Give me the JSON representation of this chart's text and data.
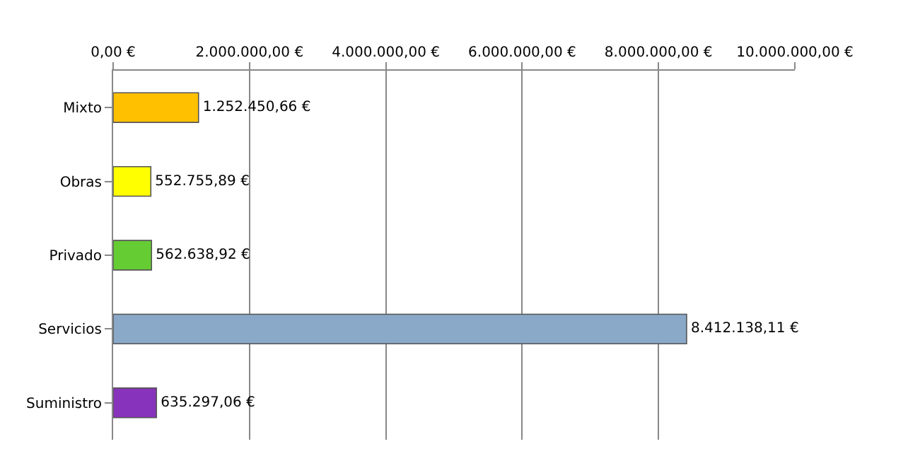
{
  "chart_data": {
    "type": "bar",
    "orientation": "horizontal",
    "categories": [
      "Mixto",
      "Obras",
      "Privado",
      "Servicios",
      "Suministro"
    ],
    "values": [
      1252450.66,
      552755.89,
      562638.92,
      8412138.11,
      635297.06
    ],
    "colors": [
      "#ffc000",
      "#ffff00",
      "#66cc33",
      "#8aa8c8",
      "#8833bb"
    ],
    "value_labels": [
      "1.252.450,66 €",
      "552.755,89 €",
      "562.638,92 €",
      "8.412.138,11 €",
      "635.297,06 €"
    ],
    "xlim": [
      0,
      10000000
    ],
    "xticks": [
      {
        "value": 0,
        "label": "0,00 €"
      },
      {
        "value": 2000000,
        "label": "2.000.000,00 €"
      },
      {
        "value": 4000000,
        "label": "4.000.000,00 €"
      },
      {
        "value": 6000000,
        "label": "6.000.000,00 €"
      },
      {
        "value": 8000000,
        "label": "8.000.000,00 €"
      },
      {
        "value": 10000000,
        "label": "10.000.000,00 €"
      }
    ],
    "grid": "x",
    "legend": false
  }
}
